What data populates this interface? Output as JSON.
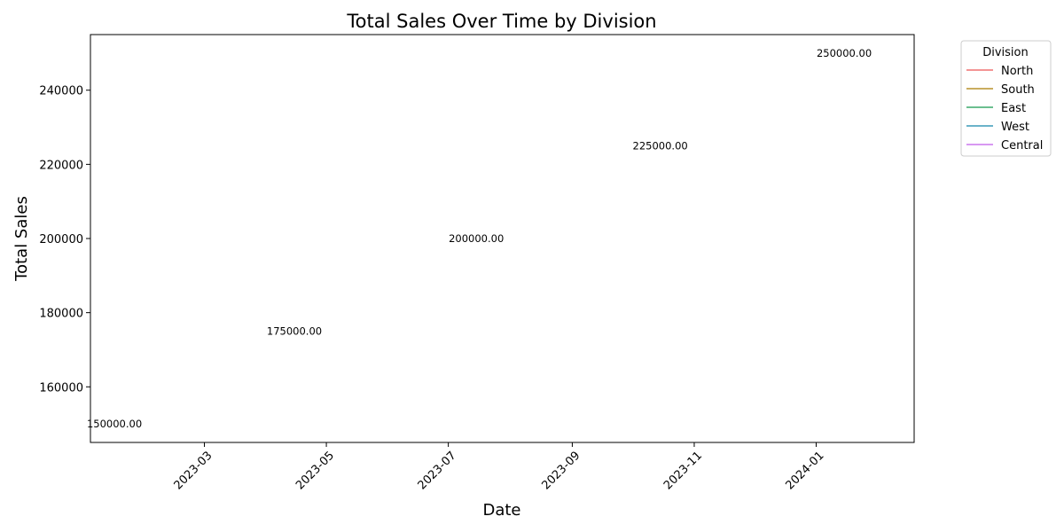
{
  "chart_data": {
    "type": "line",
    "title": "Total Sales Over Time by Division",
    "xlabel": "Date",
    "ylabel": "Total Sales",
    "x_axis_type": "date",
    "xlim": [
      "2023-01-03",
      "2024-02-19"
    ],
    "ylim": [
      145000,
      255000
    ],
    "x_ticks": [
      "2023-03",
      "2023-05",
      "2023-07",
      "2023-09",
      "2023-11",
      "2024-01"
    ],
    "y_ticks": [
      160000,
      180000,
      200000,
      220000,
      240000
    ],
    "grid": false,
    "legend": {
      "title": "Division",
      "position": "outside-top-right"
    },
    "series": [
      {
        "name": "North",
        "color": "#f07070",
        "points": []
      },
      {
        "name": "South",
        "color": "#b8922a",
        "points": []
      },
      {
        "name": "East",
        "color": "#3aaa6a",
        "points": []
      },
      {
        "name": "West",
        "color": "#3a9ab8",
        "points": []
      },
      {
        "name": "Central",
        "color": "#cc77ee",
        "points": []
      }
    ],
    "annotations": [
      {
        "x": "2023-01-15",
        "y": 150000,
        "text": "150000.00"
      },
      {
        "x": "2023-04-15",
        "y": 175000,
        "text": "175000.00"
      },
      {
        "x": "2023-07-15",
        "y": 200000,
        "text": "200000.00"
      },
      {
        "x": "2023-10-15",
        "y": 225000,
        "text": "225000.00"
      },
      {
        "x": "2024-01-15",
        "y": 250000,
        "text": "250000.00"
      }
    ]
  }
}
